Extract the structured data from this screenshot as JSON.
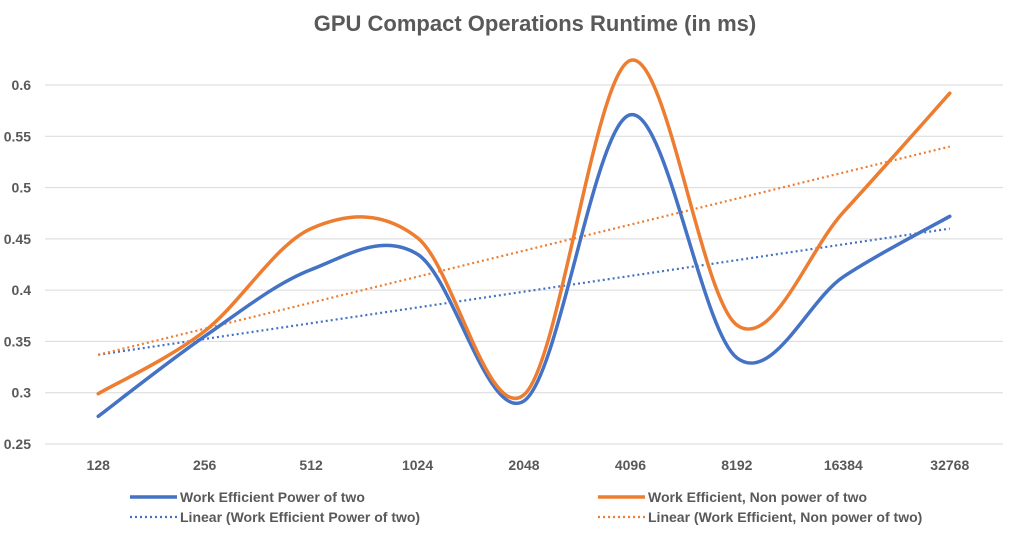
{
  "chart_data": {
    "type": "line",
    "title": "GPU Compact Operations Runtime (in ms)",
    "xlabel": "",
    "ylabel": "",
    "categories": [
      "128",
      "256",
      "512",
      "1024",
      "2048",
      "4096",
      "8192",
      "16384",
      "32768"
    ],
    "ylim": [
      0.25,
      0.6
    ],
    "yticks": [
      "0.25",
      "0.3",
      "0.35",
      "0.4",
      "0.45",
      "0.5",
      "0.55",
      "0.6"
    ],
    "grid": true,
    "legend_position": "bottom",
    "series": [
      {
        "name": "Work Efficient Power of two",
        "color": "#4472c4",
        "style": "solid",
        "smooth": true,
        "values": [
          0.277,
          0.355,
          0.42,
          0.435,
          0.292,
          0.571,
          0.334,
          0.413,
          0.472
        ]
      },
      {
        "name": "Work Efficient, Non power of two",
        "color": "#ed7d31",
        "style": "solid",
        "smooth": true,
        "values": [
          0.299,
          0.36,
          0.46,
          0.451,
          0.298,
          0.624,
          0.366,
          0.476,
          0.592
        ]
      }
    ],
    "trendlines": [
      {
        "name": "Linear (Work Efficient Power of two)",
        "color": "#4472c4",
        "style": "dotted",
        "values": [
          0.337,
          0.46
        ]
      },
      {
        "name": "Linear (Work Efficient, Non power of two)",
        "color": "#ed7d31",
        "style": "dotted",
        "values": [
          0.337,
          0.54
        ]
      }
    ]
  }
}
